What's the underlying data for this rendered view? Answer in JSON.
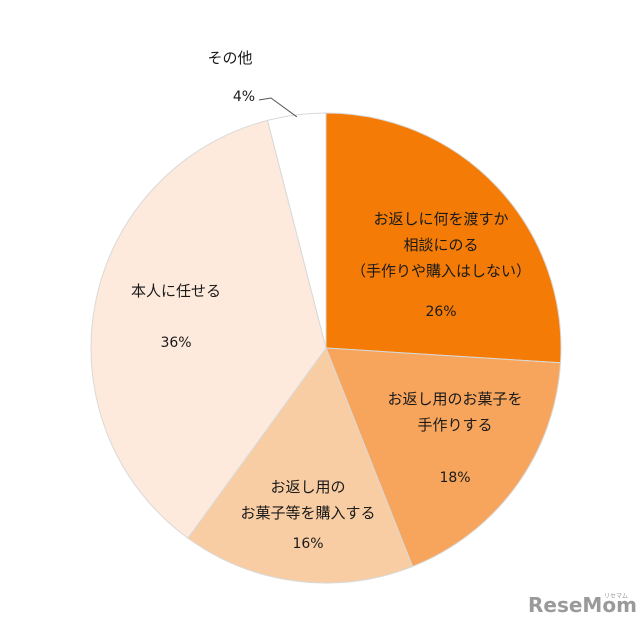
{
  "chart_data": {
    "type": "pie",
    "slices": [
      {
        "label_lines": [
          "お返しに何を渡すか",
          "相談にのる",
          "（手作りや購入はしない）"
        ],
        "value": 26,
        "value_label": "26%",
        "color": "#f47c06"
      },
      {
        "label_lines": [
          "お返し用のお菓子を",
          "手作りする"
        ],
        "value": 18,
        "value_label": "18%",
        "color": "#f7a55c"
      },
      {
        "label_lines": [
          "お返し用の",
          "お菓子等を購入する"
        ],
        "value": 16,
        "value_label": "16%",
        "color": "#f9cda3"
      },
      {
        "label_lines": [
          "本人に任せる"
        ],
        "value": 36,
        "value_label": "36%",
        "color": "#fdeadc"
      },
      {
        "label_lines": [
          "その他"
        ],
        "value": 4,
        "value_label": "4%",
        "color": "#ffffff"
      }
    ]
  },
  "watermark": {
    "text": "ReseMom",
    "small_text": "リセマム"
  }
}
